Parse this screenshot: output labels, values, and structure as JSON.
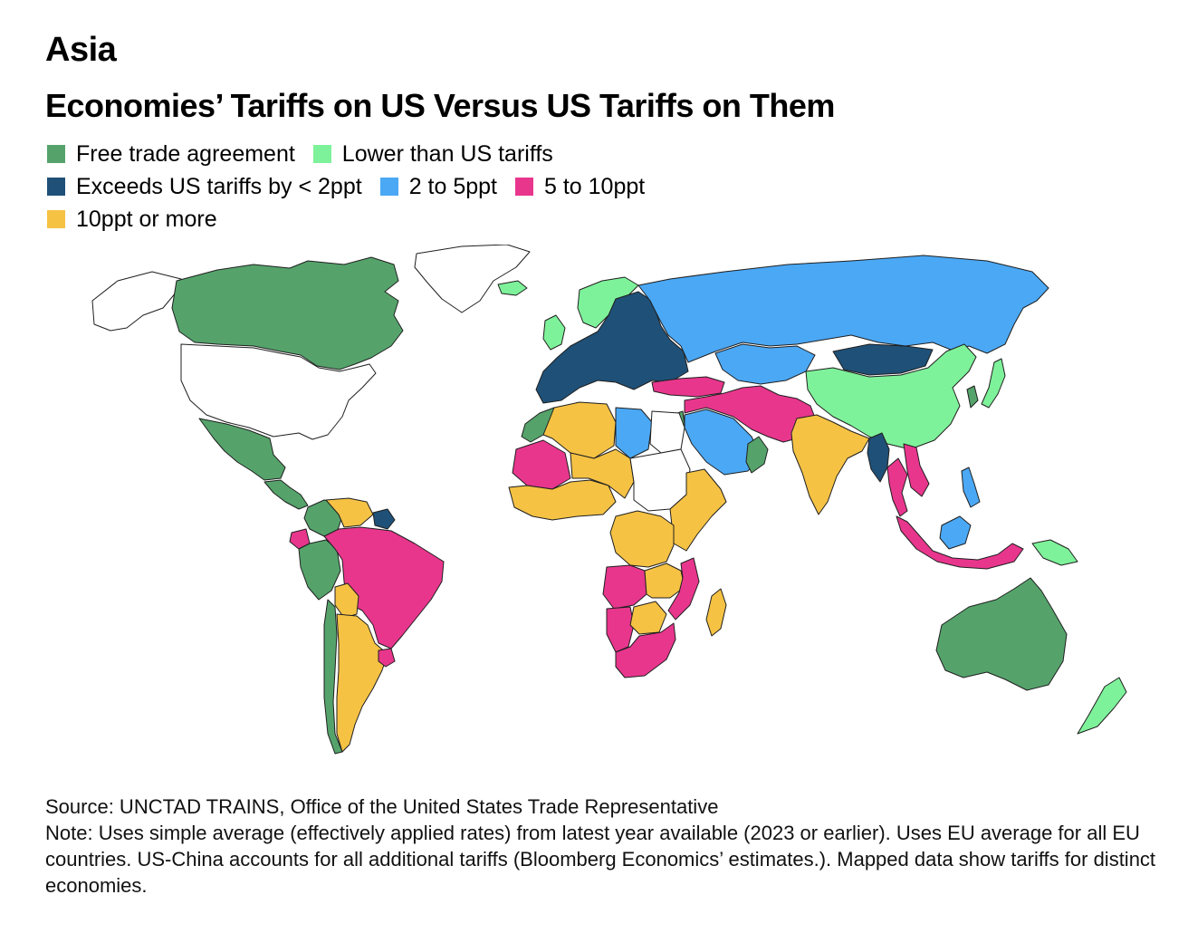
{
  "kicker": "Asia",
  "title": "Economies’ Tariffs on US Versus US Tariffs on Them",
  "legend": {
    "rows": [
      [
        {
          "label": "Free trade agreement",
          "color": "#55a36b"
        },
        {
          "label": "Lower than US tariffs",
          "color": "#7ef29a"
        }
      ],
      [
        {
          "label": "Exceeds US tariffs by < 2ppt",
          "color": "#1f5077"
        },
        {
          "label": "2 to 5ppt",
          "color": "#4ba8f5"
        },
        {
          "label": "5 to 10ppt",
          "color": "#e8368d"
        }
      ],
      [
        {
          "label": "10ppt or more",
          "color": "#f5c244"
        }
      ]
    ]
  },
  "colors": {
    "none": "#ffffff",
    "fta": "#55a36b",
    "lower": "#7ef29a",
    "lt2": "#1f5077",
    "p2to5": "#4ba8f5",
    "p5to10": "#e8368d",
    "p10plus": "#f5c244"
  },
  "regions": [
    {
      "name": "Canada",
      "category": "fta"
    },
    {
      "name": "Alaska",
      "category": "none"
    },
    {
      "name": "United States",
      "category": "none"
    },
    {
      "name": "Mexico",
      "category": "fta"
    },
    {
      "name": "Central America",
      "category": "fta"
    },
    {
      "name": "Greenland",
      "category": "none"
    },
    {
      "name": "Colombia",
      "category": "fta"
    },
    {
      "name": "Venezuela",
      "category": "p10plus"
    },
    {
      "name": "Guianas",
      "category": "lt2"
    },
    {
      "name": "Peru",
      "category": "fta"
    },
    {
      "name": "Ecuador",
      "category": "p5to10"
    },
    {
      "name": "Brazil",
      "category": "p5to10"
    },
    {
      "name": "Bolivia",
      "category": "p10plus"
    },
    {
      "name": "Chile",
      "category": "fta"
    },
    {
      "name": "Argentina",
      "category": "p10plus"
    },
    {
      "name": "Uruguay",
      "category": "p5to10"
    },
    {
      "name": "Iceland",
      "category": "lower"
    },
    {
      "name": "Norway",
      "category": "lower"
    },
    {
      "name": "European Union",
      "category": "lt2"
    },
    {
      "name": "United Kingdom",
      "category": "lower"
    },
    {
      "name": "Russia",
      "category": "p2to5"
    },
    {
      "name": "Kazakhstan",
      "category": "p2to5"
    },
    {
      "name": "Turkey",
      "category": "p5to10"
    },
    {
      "name": "Middle East",
      "category": "p5to10"
    },
    {
      "name": "Saudi Arabia",
      "category": "p2to5"
    },
    {
      "name": "Oman",
      "category": "fta"
    },
    {
      "name": "Israel",
      "category": "fta"
    },
    {
      "name": "Mongolia",
      "category": "lt2"
    },
    {
      "name": "China",
      "category": "lower"
    },
    {
      "name": "Korea",
      "category": "fta"
    },
    {
      "name": "Japan",
      "category": "lower"
    },
    {
      "name": "India",
      "category": "p10plus"
    },
    {
      "name": "Myanmar",
      "category": "lt2"
    },
    {
      "name": "Thailand",
      "category": "p5to10"
    },
    {
      "name": "Vietnam",
      "category": "p5to10"
    },
    {
      "name": "Philippines",
      "category": "p2to5"
    },
    {
      "name": "Indonesia",
      "category": "p5to10"
    },
    {
      "name": "Borneo",
      "category": "p2to5"
    },
    {
      "name": "Papua New Guinea",
      "category": "lower"
    },
    {
      "name": "Australia",
      "category": "fta"
    },
    {
      "name": "New Zealand",
      "category": "lower"
    },
    {
      "name": "Morocco",
      "category": "fta"
    },
    {
      "name": "Algeria",
      "category": "p10plus"
    },
    {
      "name": "Libya",
      "category": "p2to5"
    },
    {
      "name": "Egypt",
      "category": "none"
    },
    {
      "name": "Mali",
      "category": "p5to10"
    },
    {
      "name": "West Africa",
      "category": "p10plus"
    },
    {
      "name": "Central Africa",
      "category": "p10plus"
    },
    {
      "name": "Sudan",
      "category": "none"
    },
    {
      "name": "East Africa",
      "category": "p10plus"
    },
    {
      "name": "DR Congo",
      "category": "p10plus"
    },
    {
      "name": "Angola",
      "category": "p5to10"
    },
    {
      "name": "Zambia",
      "category": "p10plus"
    },
    {
      "name": "Mozambique",
      "category": "p5to10"
    },
    {
      "name": "Namibia",
      "category": "p5to10"
    },
    {
      "name": "Botswana",
      "category": "p10plus"
    },
    {
      "name": "South Africa",
      "category": "p5to10"
    },
    {
      "name": "Madagascar",
      "category": "p10plus"
    }
  ],
  "footer": {
    "source": "Source: UNCTAD TRAINS, Office of the United States Trade Representative",
    "note": "Note: Uses simple average (effectively applied rates) from latest year available (2023 or earlier). Uses EU average for all EU countries. US-China accounts for all additional tariffs (Bloomberg Economics’ estimates.). Mapped data show tariffs for distinct economies."
  }
}
